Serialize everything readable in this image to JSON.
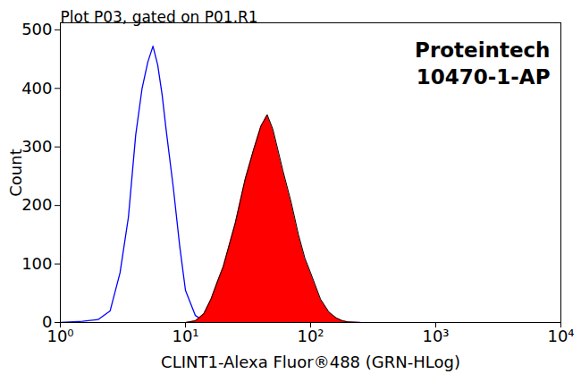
{
  "chart_data": {
    "type": "area",
    "title": "Plot P03, gated on P01.R1",
    "annotations": [
      "Proteintech",
      "10470-1-AP"
    ],
    "x_label": "CLINT1-Alexa Fluor®488 (GRN-HLog)",
    "y_label": "Count",
    "log": "x",
    "grid": false,
    "xlim": [
      1,
      10000
    ],
    "xticks": [
      {
        "value": 1,
        "label": "10⁰"
      },
      {
        "value": 10,
        "label": "10¹"
      },
      {
        "value": 100,
        "label": "10²"
      },
      {
        "value": 1000,
        "label": "10³"
      },
      {
        "value": 10000,
        "label": "10⁴"
      }
    ],
    "ylim": [
      0,
      512
    ],
    "yticks": [
      0,
      100,
      200,
      300,
      400,
      500
    ],
    "x": [
      1,
      1.5,
      2,
      2.5,
      3,
      3.5,
      4,
      4.5,
      5,
      5.5,
      6,
      6.5,
      7,
      8,
      9,
      10,
      12,
      14,
      16,
      18,
      20,
      25,
      30,
      35,
      40,
      45,
      50,
      60,
      70,
      80,
      90,
      100,
      120,
      140,
      160,
      180,
      200,
      250
    ],
    "series": [
      {
        "type": "line",
        "color": "#0000ff",
        "values": [
          0,
          2,
          5,
          20,
          85,
          180,
          320,
          400,
          445,
          472,
          440,
          390,
          330,
          230,
          130,
          55,
          12,
          3,
          1,
          0,
          0,
          0,
          0,
          0,
          0,
          0,
          0,
          0,
          0,
          0,
          0,
          0,
          0,
          0,
          0,
          0,
          0,
          0
        ]
      },
      {
        "type": "area",
        "color": "#ff0000",
        "values": [
          0,
          0,
          0,
          0,
          0,
          0,
          0,
          0,
          0,
          0,
          0,
          0,
          0,
          0,
          0,
          0,
          3,
          15,
          40,
          70,
          95,
          170,
          245,
          295,
          335,
          355,
          330,
          260,
          205,
          150,
          110,
          85,
          40,
          18,
          8,
          3,
          1,
          0
        ]
      }
    ]
  }
}
